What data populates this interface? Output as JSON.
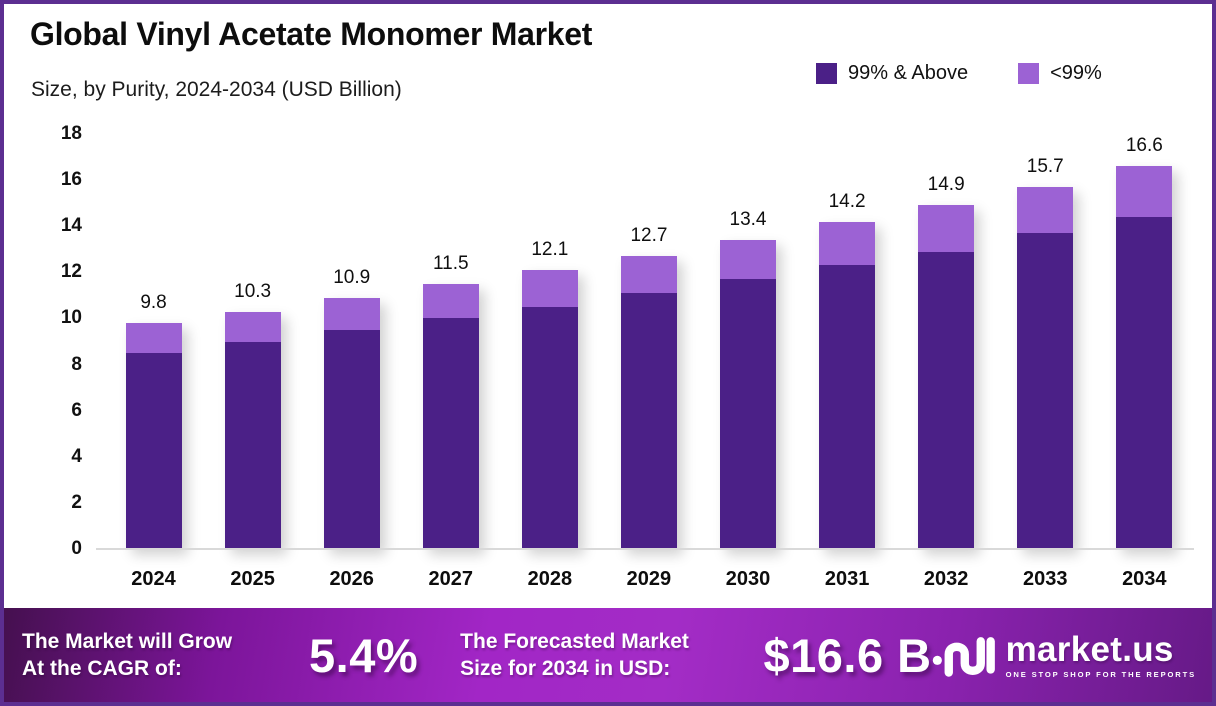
{
  "header": {
    "title": "Global Vinyl Acetate Monomer Market",
    "subtitle": "Size, by Purity, 2024-2034 (USD Billion)"
  },
  "legend": {
    "items": [
      {
        "label": "99% & Above",
        "color": "#4b2087"
      },
      {
        "label": "<99%",
        "color": "#9c62d4"
      }
    ]
  },
  "chart_data": {
    "type": "bar",
    "stacked": true,
    "title": "Global Vinyl Acetate Monomer Market Size, by Purity, 2024-2034 (USD Billion)",
    "categories": [
      "2024",
      "2025",
      "2026",
      "2027",
      "2028",
      "2029",
      "2030",
      "2031",
      "2032",
      "2033",
      "2034"
    ],
    "series": [
      {
        "name": "99% & Above",
        "color": "#4b2087",
        "values": [
          8.5,
          9.0,
          9.5,
          10.0,
          10.5,
          11.1,
          11.7,
          12.3,
          12.9,
          13.7,
          14.4
        ]
      },
      {
        "name": "<99%",
        "color": "#9c62d4",
        "values": [
          1.3,
          1.3,
          1.4,
          1.5,
          1.6,
          1.6,
          1.7,
          1.9,
          2.0,
          2.0,
          2.2
        ]
      }
    ],
    "totals": [
      "9.8",
      "10.3",
      "10.9",
      "11.5",
      "12.1",
      "12.7",
      "13.4",
      "14.2",
      "14.9",
      "15.7",
      "16.6"
    ],
    "xlabel": "",
    "ylabel": "",
    "ylim": [
      0,
      18
    ],
    "yticks": [
      0,
      2,
      4,
      6,
      8,
      10,
      12,
      14,
      16,
      18
    ],
    "grid": false,
    "legend_position": "top-right"
  },
  "banner": {
    "cagr_label_line1": "The Market will Grow",
    "cagr_label_line2": "At the CAGR of:",
    "cagr_value": "5.4%",
    "forecast_label_line1": "The Forecasted Market",
    "forecast_label_line2": "Size for 2034 in USD:",
    "forecast_value": "$16.6 B",
    "logo_text": "market.us",
    "logo_tagline": "ONE STOP SHOP FOR THE REPORTS"
  },
  "colors": {
    "series_dark": "#4b2087",
    "series_light": "#9c62d4",
    "frame_border": "#5c2e91",
    "baseline": "#d9d9d9",
    "banner_gradient_left": "#45104f",
    "banner_gradient_mid": "#a226c6",
    "banner_gradient_right": "#661a87"
  }
}
